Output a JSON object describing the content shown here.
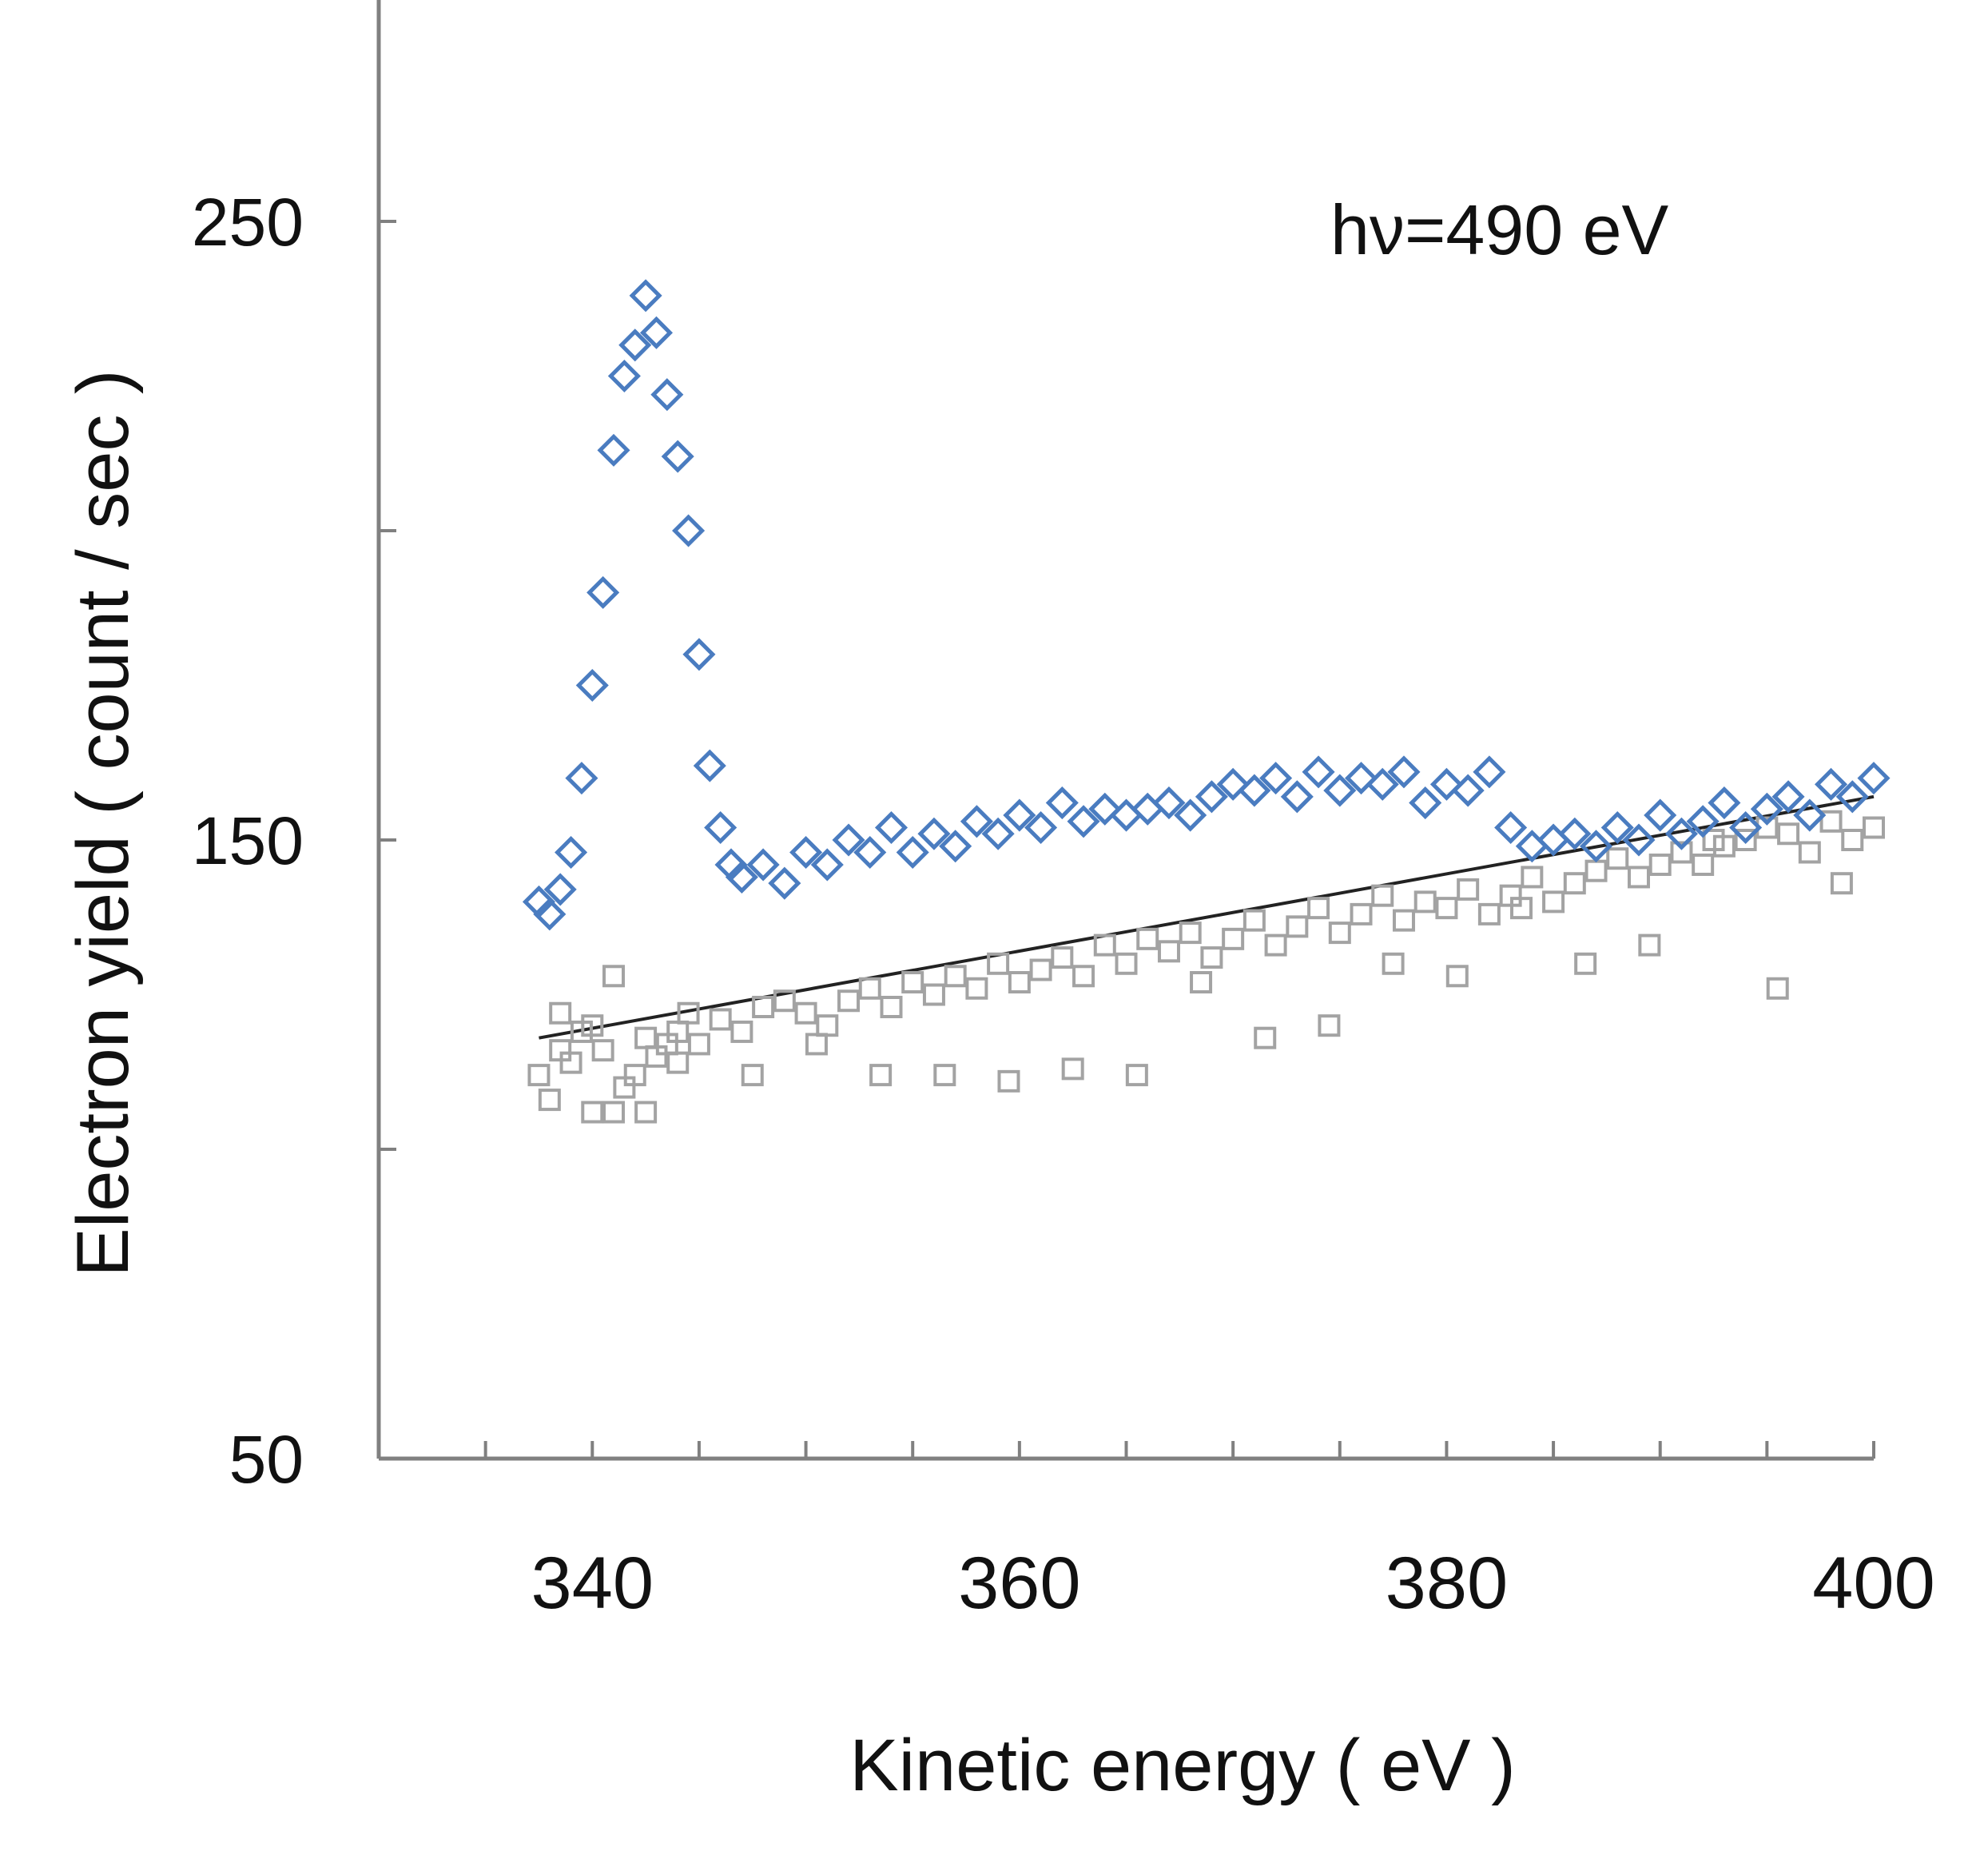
{
  "chart_data": {
    "type": "scatter",
    "annotation": "hν=490 eV",
    "xlabel": "Kinetic energy ( eV )",
    "ylabel": "Electron yield ( count / sec )",
    "xlim": [
      330,
      400
    ],
    "ylim": [
      50,
      290
    ],
    "x_tick_labels": [
      "340",
      "360",
      "380",
      "400"
    ],
    "x_tick_values": [
      340,
      360,
      380,
      400
    ],
    "x_minor_tick_values": [
      335,
      340,
      345,
      350,
      355,
      360,
      365,
      370,
      375,
      380,
      385,
      390,
      395,
      400
    ],
    "y_tick_labels": [
      "50",
      "150",
      "250"
    ],
    "y_tick_values": [
      50,
      150,
      250
    ],
    "y_minor_tick_values": [
      100,
      200
    ],
    "grid": false,
    "legend": "none",
    "colors": {
      "series_1": "#4A7CC0",
      "series_2": "#A3A3A3",
      "fit_line": "#222222",
      "axis": "#808080"
    },
    "series": [
      {
        "marker": "diamond",
        "x": [
          337.5,
          338.0,
          338.5,
          339.0,
          339.5,
          340.0,
          340.5,
          341.0,
          341.5,
          342.0,
          342.5,
          343.0,
          343.5,
          344.0,
          344.5,
          345.0,
          345.5,
          346.0,
          346.5,
          347.0,
          348.0,
          349.0,
          350.0,
          351.0,
          352.0,
          353.0,
          354.0,
          355.0,
          356.0,
          357.0,
          358.0,
          359.0,
          360.0,
          361.0,
          362.0,
          363.0,
          364.0,
          365.0,
          366.0,
          367.0,
          368.0,
          369.0,
          370.0,
          371.0,
          372.0,
          373.0,
          374.0,
          375.0,
          376.0,
          377.0,
          378.0,
          379.0,
          380.0,
          381.0,
          382.0,
          383.0,
          384.0,
          385.0,
          386.0,
          387.0,
          388.0,
          389.0,
          390.0,
          391.0,
          392.0,
          393.0,
          394.0,
          395.0,
          396.0,
          397.0,
          398.0,
          399.0,
          400.0
        ],
        "y": [
          140,
          138,
          142,
          148,
          160,
          175,
          190,
          213,
          225,
          230,
          238,
          232,
          222,
          212,
          200,
          180,
          162,
          152,
          146,
          144,
          146,
          143,
          148,
          146,
          150,
          148,
          152,
          148,
          151,
          149,
          153,
          151,
          154,
          152,
          156,
          153,
          155,
          154,
          155,
          156,
          154,
          157,
          159,
          158,
          160,
          157,
          161,
          158,
          160,
          159,
          161,
          156,
          159,
          158,
          161,
          152,
          149,
          150,
          151,
          149,
          152,
          150,
          154,
          151,
          153,
          156,
          152,
          155,
          157,
          154,
          159,
          157,
          160
        ]
      },
      {
        "marker": "square",
        "x": [
          337.5,
          338.0,
          338.5,
          339.0,
          339.5,
          340.0,
          340.5,
          341.0,
          341.5,
          342.0,
          342.5,
          343.0,
          343.5,
          344.0,
          344.5,
          345.0,
          346.0,
          347.0,
          348.0,
          349.0,
          350.0,
          351.0,
          352.0,
          353.0,
          354.0,
          355.0,
          356.0,
          357.0,
          358.0,
          359.0,
          360.0,
          361.0,
          362.0,
          363.0,
          364.0,
          365.0,
          366.0,
          367.0,
          368.0,
          369.0,
          370.0,
          371.0,
          372.0,
          373.0,
          374.0,
          375.0,
          376.0,
          377.0,
          378.0,
          379.0,
          380.0,
          381.0,
          382.0,
          383.0,
          384.0,
          385.0,
          386.0,
          387.0,
          388.0,
          389.0,
          390.0,
          391.0,
          392.0,
          393.0,
          394.0,
          395.0,
          396.0,
          397.0,
          398.0,
          399.0,
          400.0,
          338.5,
          340.0,
          341.0,
          342.5,
          344.0,
          347.5,
          350.5,
          353.5,
          356.5,
          359.5,
          362.5,
          365.5,
          368.5,
          371.5,
          374.5,
          377.5,
          380.5,
          383.5,
          386.5,
          389.5,
          392.5,
          395.5,
          398.5
        ],
        "y": [
          112,
          108,
          116,
          114,
          119,
          120,
          116,
          106,
          110,
          112,
          118,
          115,
          117,
          119,
          122,
          117,
          121,
          119,
          123,
          124,
          122,
          120,
          124,
          126,
          123,
          127,
          125,
          128,
          126,
          130,
          127,
          129,
          131,
          128,
          133,
          130,
          134,
          132,
          135,
          131,
          134,
          137,
          133,
          136,
          139,
          135,
          138,
          141,
          137,
          140,
          139,
          142,
          138,
          141,
          144,
          140,
          143,
          145,
          147,
          144,
          146,
          148,
          146,
          149,
          150,
          152,
          151,
          148,
          153,
          150,
          152,
          122,
          106,
          128,
          106,
          114,
          112,
          117,
          112,
          112,
          111,
          113,
          112,
          127,
          118,
          120,
          130,
          128,
          139,
          130,
          133,
          150,
          126,
          143
        ]
      }
    ],
    "fit_line": {
      "x": [
        337.5,
        400.0
      ],
      "y": [
        118,
        157
      ]
    }
  }
}
